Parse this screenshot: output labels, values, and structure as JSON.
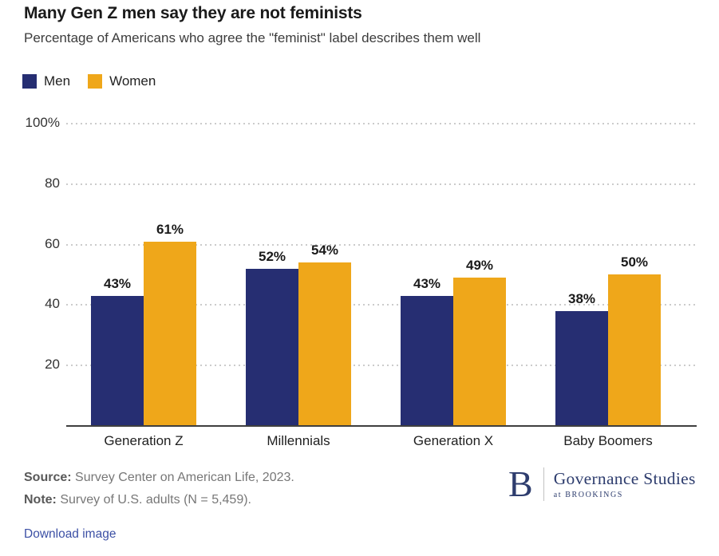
{
  "header": {
    "title": "Many Gen Z men say they are not feminists",
    "subtitle": "Percentage of Americans who agree the \"feminist\" label describes them well"
  },
  "legend": {
    "items": [
      {
        "label": "Men",
        "color": "#262e72"
      },
      {
        "label": "Women",
        "color": "#efa71a"
      }
    ]
  },
  "chart_data": {
    "type": "bar",
    "title": "Many Gen Z men say they are not feminists",
    "subtitle": "Percentage of Americans who agree the \"feminist\" label describes them well",
    "categories": [
      "Generation Z",
      "Millennials",
      "Generation X",
      "Baby Boomers"
    ],
    "series": [
      {
        "name": "Men",
        "color": "#262e72",
        "values": [
          43,
          52,
          43,
          38
        ]
      },
      {
        "name": "Women",
        "color": "#efa71a",
        "values": [
          61,
          54,
          49,
          50
        ]
      }
    ],
    "value_suffix": "%",
    "xlabel": "",
    "ylabel": "",
    "ylim": [
      0,
      100
    ],
    "y_ticks": [
      100,
      80,
      60,
      40,
      20
    ],
    "y_tick_labels": [
      "100%",
      "80",
      "60",
      "40",
      "20"
    ],
    "grid": "horizontal-dotted",
    "legend_position": "top-left"
  },
  "footer": {
    "source_label": "Source:",
    "source_text": " Survey Center on American Life, 2023.",
    "note_label": "Note:",
    "note_text": " Survey of U.S. adults (N = 5,459).",
    "download_label": "Download image"
  },
  "logo": {
    "monogram": "B",
    "title": "Governance Studies",
    "subtitle": "at BROOKINGS"
  },
  "colors": {
    "men": "#262e72",
    "women": "#efa71a",
    "link": "#3c50a5",
    "logo_navy": "#2e3d6e"
  }
}
